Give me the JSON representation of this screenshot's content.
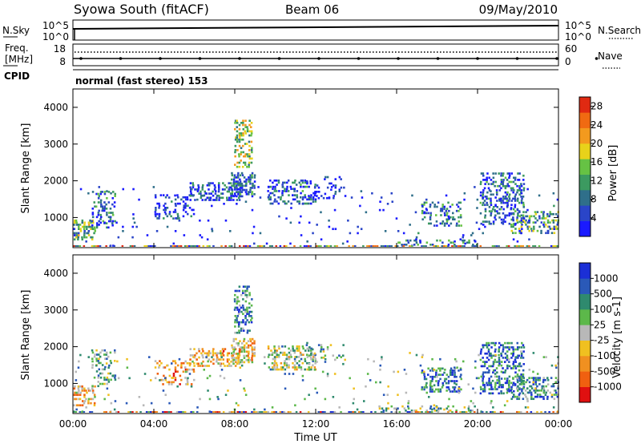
{
  "header": {
    "station": "Syowa South (fitACF)",
    "beam": "Beam 06",
    "date": "09/May/2010"
  },
  "colors": {
    "power_scale": [
      "#1a1aff",
      "#2a45c8",
      "#2f6f8a",
      "#3c9a60",
      "#66c244",
      "#e8d21a",
      "#f39a1e",
      "#f06a12",
      "#e02a12"
    ],
    "velocity_scale": [
      "#1b2fd6",
      "#2a59b8",
      "#2f8a6e",
      "#5cb84a",
      "#b8b8b8",
      "#f0c020",
      "#f09020",
      "#f06010",
      "#e01010"
    ]
  },
  "chart_data": [
    {
      "type": "line",
      "name": "noise-panel",
      "left_label": "N.Sky",
      "right_label": "N.Search",
      "left_ticks": [
        "10^5",
        "10^0"
      ],
      "right_ticks": [
        "10^5",
        "10^0"
      ]
    },
    {
      "type": "scatter",
      "name": "freq-nave-panel",
      "left_label_line1": "Freq.",
      "left_label_line2": "[MHz]",
      "right_label": "Nave",
      "left_ticks": [
        "18",
        "8"
      ],
      "right_ticks": [
        "60",
        "0"
      ]
    },
    {
      "type": "text",
      "name": "cpid-panel",
      "label": "CPID",
      "value": "normal (fast stereo) 153"
    },
    {
      "type": "heatmap",
      "name": "power-panel",
      "ylabel": "Slant Range [km]",
      "y_ticks": [
        "1000",
        "2000",
        "3000",
        "4000"
      ],
      "ylim": [
        180,
        4500
      ],
      "colorbar_label": "Power [dB]",
      "colorbar_ticks": [
        "4",
        "8",
        "12",
        "16",
        "20",
        "24",
        "28"
      ],
      "clim": [
        0,
        30
      ],
      "blobs": [
        {
          "t": 0.4,
          "r": 650,
          "dt": 1.4,
          "dr": 550,
          "d": 0.5,
          "level": 0.45
        },
        {
          "t": 1.5,
          "r": 1200,
          "dt": 1.2,
          "dr": 1000,
          "d": 0.4,
          "level": 0.25
        },
        {
          "t": 5.0,
          "r": 1300,
          "dt": 2.0,
          "dr": 700,
          "d": 0.28,
          "level": 0.15
        },
        {
          "t": 7.0,
          "r": 1700,
          "dt": 2.5,
          "dr": 500,
          "d": 0.45,
          "level": 0.2
        },
        {
          "t": 8.4,
          "r": 3000,
          "dt": 0.9,
          "dr": 1300,
          "d": 0.45,
          "level": 0.5
        },
        {
          "t": 8.4,
          "r": 1900,
          "dt": 1.2,
          "dr": 700,
          "d": 0.55,
          "level": 0.25
        },
        {
          "t": 10.8,
          "r": 1700,
          "dt": 2.4,
          "dr": 700,
          "d": 0.42,
          "level": 0.22
        },
        {
          "t": 12.5,
          "r": 1800,
          "dt": 2.0,
          "dr": 600,
          "d": 0.18,
          "level": 0.12
        },
        {
          "t": 18.2,
          "r": 1100,
          "dt": 2.0,
          "dr": 700,
          "d": 0.38,
          "level": 0.28
        },
        {
          "t": 21.2,
          "r": 1500,
          "dt": 2.2,
          "dr": 1400,
          "d": 0.38,
          "level": 0.22
        },
        {
          "t": 22.8,
          "r": 850,
          "dt": 2.4,
          "dr": 600,
          "d": 0.42,
          "level": 0.38
        },
        {
          "t": 18.0,
          "r": 300,
          "dt": 4.0,
          "dr": 250,
          "d": 0.3,
          "level": 0.35
        },
        {
          "t": 12.0,
          "r": 400,
          "dt": 24.0,
          "dr": 2900,
          "d": 0.03,
          "level": 0.1
        }
      ]
    },
    {
      "type": "heatmap",
      "name": "velocity-panel",
      "ylabel": "Slant Range [km]",
      "y_ticks": [
        "1000",
        "2000",
        "3000",
        "4000"
      ],
      "ylim": [
        180,
        4500
      ],
      "colorbar_label": "Velocity [m s-1]",
      "colorbar_ticks": [
        "1000",
        "500",
        "100",
        "25",
        "-25",
        "-100",
        "-500",
        "-1000"
      ],
      "xlabel": "Time UT",
      "x_ticks": [
        "00:00",
        "04:00",
        "08:00",
        "12:00",
        "16:00",
        "20:00",
        "00:00"
      ],
      "xlim": [
        0,
        24
      ],
      "blobs": [
        {
          "t": 0.4,
          "r": 650,
          "dt": 1.4,
          "dr": 550,
          "d": 0.5,
          "level": 0.35
        },
        {
          "t": 1.5,
          "r": 1400,
          "dt": 1.2,
          "dr": 1000,
          "d": 0.35,
          "level": 0.6
        },
        {
          "t": 5.0,
          "r": 1300,
          "dt": 2.0,
          "dr": 700,
          "d": 0.28,
          "level": 0.3
        },
        {
          "t": 7.0,
          "r": 1700,
          "dt": 2.5,
          "dr": 500,
          "d": 0.45,
          "level": 0.35
        },
        {
          "t": 8.4,
          "r": 3000,
          "dt": 0.9,
          "dr": 1300,
          "d": 0.5,
          "level": 0.75
        },
        {
          "t": 8.4,
          "r": 1900,
          "dt": 1.2,
          "dr": 700,
          "d": 0.55,
          "level": 0.4
        },
        {
          "t": 10.8,
          "r": 1700,
          "dt": 2.4,
          "dr": 700,
          "d": 0.42,
          "level": 0.55
        },
        {
          "t": 12.5,
          "r": 1800,
          "dt": 2.0,
          "dr": 600,
          "d": 0.15,
          "level": 0.6
        },
        {
          "t": 18.2,
          "r": 1100,
          "dt": 2.0,
          "dr": 700,
          "d": 0.42,
          "level": 0.78
        },
        {
          "t": 21.2,
          "r": 1400,
          "dt": 2.2,
          "dr": 1400,
          "d": 0.4,
          "level": 0.8
        },
        {
          "t": 22.8,
          "r": 850,
          "dt": 2.4,
          "dr": 600,
          "d": 0.45,
          "level": 0.72
        },
        {
          "t": 17.5,
          "r": 300,
          "dt": 5.0,
          "dr": 250,
          "d": 0.3,
          "level": 0.6
        },
        {
          "t": 12.0,
          "r": 400,
          "dt": 24.0,
          "dr": 2900,
          "d": 0.03,
          "level": 0.62
        }
      ]
    }
  ]
}
